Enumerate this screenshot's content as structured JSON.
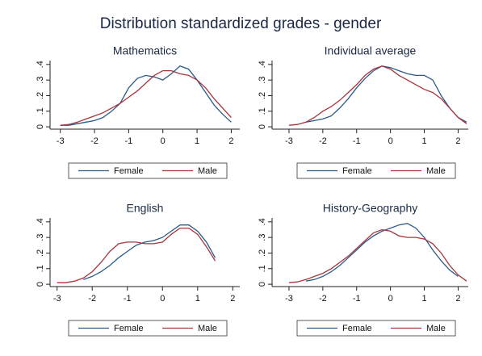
{
  "title": "Distribution standardized grades - gender",
  "chart_data": [
    {
      "type": "line",
      "title": "Mathematics",
      "x": [
        -3,
        -2.75,
        -2.5,
        -2.25,
        -2,
        -1.75,
        -1.5,
        -1.25,
        -1,
        -0.75,
        -0.5,
        -0.25,
        0,
        0.25,
        0.5,
        0.75,
        1,
        1.25,
        1.5,
        1.75,
        2,
        2.25
      ],
      "series": [
        {
          "name": "Female",
          "color": "#2b5a88",
          "values": [
            0.01,
            0.01,
            0.02,
            0.03,
            0.04,
            0.06,
            0.1,
            0.15,
            0.25,
            0.31,
            0.33,
            0.32,
            0.3,
            0.34,
            0.39,
            0.37,
            0.3,
            0.22,
            0.14,
            0.08,
            0.03,
            null
          ]
        },
        {
          "name": "Male",
          "color": "#a8343c",
          "values": [
            0.01,
            0.015,
            0.03,
            0.05,
            0.07,
            0.09,
            0.12,
            0.15,
            0.19,
            0.23,
            0.28,
            0.33,
            0.36,
            0.36,
            0.34,
            0.33,
            0.3,
            0.25,
            0.18,
            0.12,
            0.06,
            null
          ]
        }
      ],
      "xlim": [
        -3.3,
        2.25
      ],
      "xticks": [
        -3,
        -2,
        -1,
        0,
        1,
        2
      ],
      "ylim": [
        -0.015,
        0.425
      ],
      "yticks": [
        {
          "value": 0,
          "label": "0"
        },
        {
          "value": 0.1,
          "label": ".1"
        },
        {
          "value": 0.2,
          "label": ".2"
        },
        {
          "value": 0.3,
          "label": ".3"
        },
        {
          "value": 0.4,
          "label": ".4"
        }
      ],
      "grid": false,
      "legend": "bottom"
    },
    {
      "type": "line",
      "title": "Individual average",
      "x": [
        -3,
        -2.75,
        -2.5,
        -2.25,
        -2,
        -1.75,
        -1.5,
        -1.25,
        -1,
        -0.75,
        -0.5,
        -0.25,
        0,
        0.25,
        0.5,
        0.75,
        1,
        1.25,
        1.5,
        1.75,
        2,
        2.25
      ],
      "series": [
        {
          "name": "Female",
          "color": "#2b5a88",
          "values": [
            null,
            null,
            0.03,
            0.04,
            0.05,
            0.07,
            0.12,
            0.18,
            0.25,
            0.31,
            0.36,
            0.39,
            0.38,
            0.36,
            0.34,
            0.33,
            0.33,
            0.3,
            0.2,
            0.12,
            0.06,
            0.03
          ]
        },
        {
          "name": "Male",
          "color": "#a8343c",
          "values": [
            0.01,
            0.015,
            0.03,
            0.06,
            0.1,
            0.13,
            0.17,
            0.22,
            0.27,
            0.33,
            0.37,
            0.39,
            0.37,
            0.33,
            0.3,
            0.27,
            0.24,
            0.22,
            0.18,
            0.12,
            0.06,
            0.02
          ]
        }
      ],
      "xlim": [
        -3.5,
        2.3
      ],
      "xticks": [
        -3,
        -2,
        -1,
        0,
        1,
        2
      ],
      "ylim": [
        -0.015,
        0.425
      ],
      "yticks": [
        {
          "value": 0,
          "label": "0"
        },
        {
          "value": 0.1,
          "label": ".1"
        },
        {
          "value": 0.2,
          "label": ".2"
        },
        {
          "value": 0.3,
          "label": ".3"
        },
        {
          "value": 0.4,
          "label": ".4"
        }
      ],
      "grid": false,
      "legend": "bottom"
    },
    {
      "type": "line",
      "title": "English",
      "x": [
        -3,
        -2.75,
        -2.5,
        -2.25,
        -2,
        -1.75,
        -1.5,
        -1.25,
        -1,
        -0.75,
        -0.5,
        -0.25,
        0,
        0.25,
        0.5,
        0.75,
        1,
        1.25,
        1.5,
        1.75,
        2,
        2.25
      ],
      "series": [
        {
          "name": "Female",
          "color": "#2b5a88",
          "values": [
            null,
            null,
            null,
            0.03,
            0.05,
            0.08,
            0.12,
            0.17,
            0.21,
            0.25,
            0.27,
            0.28,
            0.3,
            0.34,
            0.38,
            0.38,
            0.34,
            0.27,
            0.17,
            null,
            null,
            null
          ]
        },
        {
          "name": "Male",
          "color": "#a8343c",
          "values": [
            0.01,
            0.01,
            0.02,
            0.04,
            0.08,
            0.14,
            0.21,
            0.26,
            0.27,
            0.27,
            0.26,
            0.26,
            0.27,
            0.32,
            0.36,
            0.36,
            0.32,
            0.24,
            0.15,
            null,
            null,
            null
          ]
        }
      ],
      "xlim": [
        -3.2,
        2.2
      ],
      "xticks": [
        -3,
        -2,
        -1,
        0,
        1,
        2
      ],
      "ylim": [
        -0.015,
        0.425
      ],
      "yticks": [
        {
          "value": 0,
          "label": "0"
        },
        {
          "value": 0.1,
          "label": ".1"
        },
        {
          "value": 0.2,
          "label": ".2"
        },
        {
          "value": 0.3,
          "label": ".3"
        },
        {
          "value": 0.4,
          "label": ".4"
        }
      ],
      "grid": false,
      "legend": "bottom"
    },
    {
      "type": "line",
      "title": "History-Geography",
      "x": [
        -3,
        -2.75,
        -2.5,
        -2.25,
        -2,
        -1.75,
        -1.5,
        -1.25,
        -1,
        -0.75,
        -0.5,
        -0.25,
        0,
        0.25,
        0.5,
        0.75,
        1,
        1.25,
        1.5,
        1.75,
        2,
        2.25
      ],
      "series": [
        {
          "name": "Female",
          "color": "#2b5a88",
          "values": [
            null,
            null,
            0.02,
            0.03,
            0.05,
            0.08,
            0.12,
            0.17,
            0.22,
            0.27,
            0.31,
            0.34,
            0.36,
            0.38,
            0.39,
            0.36,
            0.3,
            0.22,
            0.15,
            0.09,
            0.05,
            null
          ]
        },
        {
          "name": "Male",
          "color": "#a8343c",
          "values": [
            0.01,
            0.015,
            0.03,
            0.05,
            0.07,
            0.1,
            0.14,
            0.18,
            0.23,
            0.28,
            0.33,
            0.35,
            0.34,
            0.31,
            0.3,
            0.3,
            0.29,
            0.26,
            0.2,
            0.12,
            0.06,
            0.02
          ]
        }
      ],
      "xlim": [
        -3.5,
        2.3
      ],
      "xticks": [
        -3,
        -2,
        -1,
        0,
        1,
        2
      ],
      "ylim": [
        -0.015,
        0.425
      ],
      "yticks": [
        {
          "value": 0,
          "label": "0"
        },
        {
          "value": 0.1,
          "label": ".1"
        },
        {
          "value": 0.2,
          "label": ".2"
        },
        {
          "value": 0.3,
          "label": ".3"
        },
        {
          "value": 0.4,
          "label": ".4"
        }
      ],
      "grid": false,
      "legend": "bottom"
    }
  ]
}
